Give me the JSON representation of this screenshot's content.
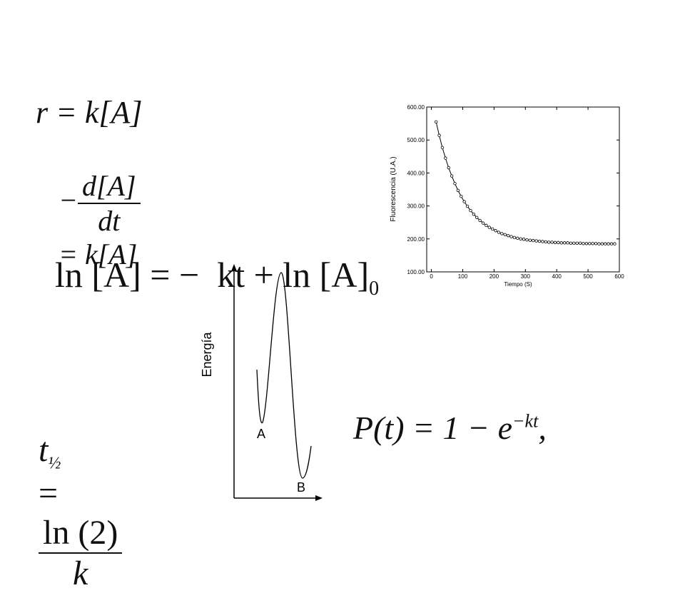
{
  "equations": {
    "rate": "r = k[A]",
    "differential": {
      "sign": "−",
      "numerator": "d[A]",
      "denominator": "dt",
      "rhs": "= k[A]"
    },
    "integrated": {
      "main": "ln [A] = −  kt + ln [A]",
      "subscript": "0"
    },
    "half_life": {
      "lhs": "t",
      "subscript": "½",
      "equals": "=",
      "numerator": "ln (2)",
      "denominator": "k"
    },
    "probability": {
      "main": "P(t) = 1 − e",
      "superscript": "−kt",
      "tail": ","
    }
  },
  "energy_diagram": {
    "axis_label": "Energía",
    "label_a": "A",
    "label_b": "B"
  },
  "chart_data": {
    "type": "scatter",
    "xlabel": "Tiempo (S)",
    "ylabel": "Fluorescencia (U.A.)",
    "x": [
      15,
      25,
      35,
      45,
      55,
      65,
      75,
      85,
      95,
      105,
      115,
      125,
      135,
      145,
      155,
      165,
      175,
      185,
      195,
      205,
      215,
      225,
      235,
      245,
      255,
      265,
      275,
      285,
      295,
      305,
      315,
      325,
      335,
      345,
      355,
      365,
      375,
      385,
      395,
      405,
      415,
      425,
      435,
      445,
      455,
      465,
      475,
      485,
      495,
      505,
      515,
      525,
      535,
      545,
      555,
      565,
      575,
      585
    ],
    "values": [
      555,
      514,
      477,
      445,
      416,
      391,
      368,
      347,
      329,
      313,
      299,
      286,
      275,
      265,
      256,
      248,
      241,
      235,
      230,
      225,
      220,
      216,
      213,
      210,
      207,
      204,
      202,
      200,
      199,
      197,
      196,
      195,
      194,
      193,
      192,
      191,
      190,
      190,
      189,
      189,
      188,
      188,
      188,
      187,
      187,
      187,
      187,
      186,
      186,
      186,
      186,
      186,
      185,
      185,
      185,
      185,
      185,
      185
    ],
    "xlim": [
      -15,
      600
    ],
    "ylim": [
      100,
      600
    ],
    "xticks": [
      0,
      100,
      200,
      300,
      400,
      500,
      600
    ],
    "yticks": [
      {
        "value": 100,
        "label": "100.00"
      },
      {
        "value": 200,
        "label": "200.00"
      },
      {
        "value": 300,
        "label": "300.00"
      },
      {
        "value": 400,
        "label": "400.00"
      },
      {
        "value": 500,
        "label": "500.00"
      },
      {
        "value": 600,
        "label": "600.00"
      }
    ],
    "color": "#000000"
  }
}
